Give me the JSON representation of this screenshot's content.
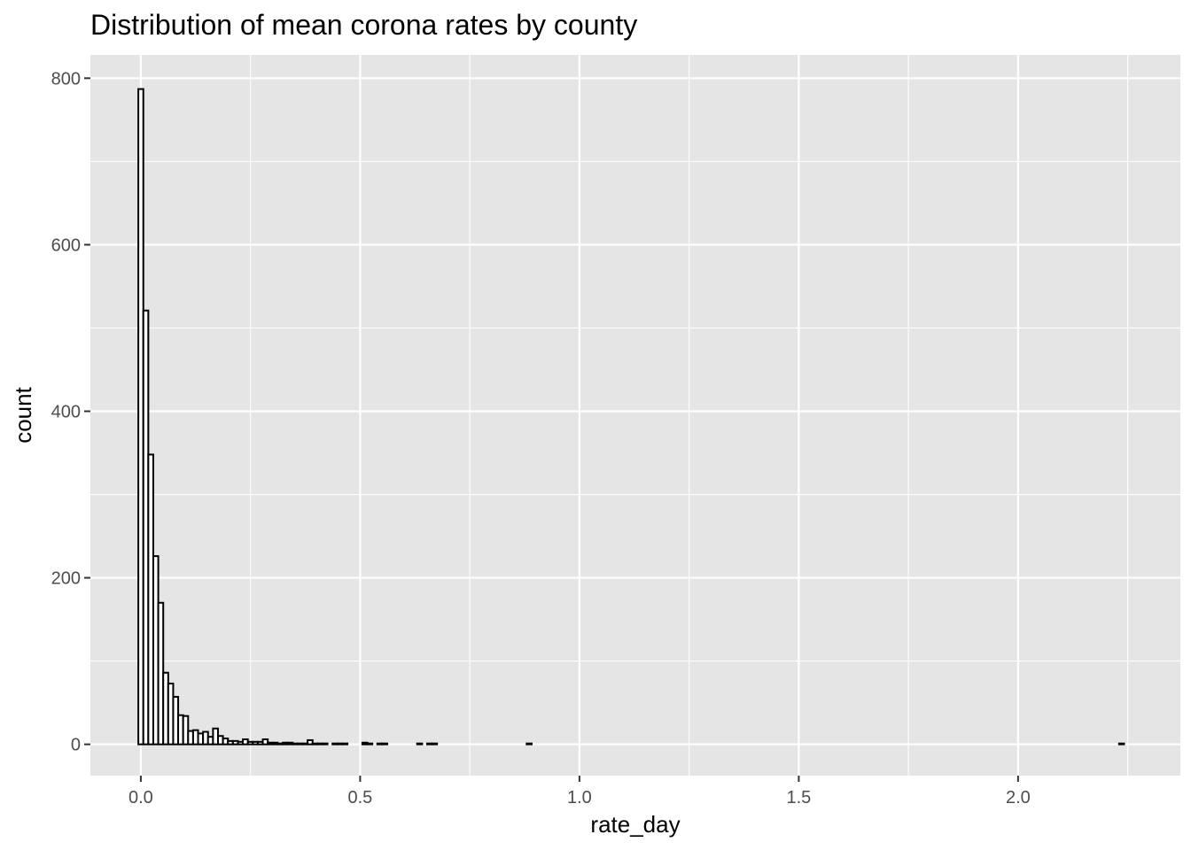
{
  "chart_data": {
    "type": "bar",
    "subtype": "histogram",
    "title": "Distribution of mean corona rates by county",
    "xlabel": "rate_day",
    "ylabel": "count",
    "xlim": [
      -0.115,
      2.37
    ],
    "ylim": [
      -37.6,
      828
    ],
    "x_ticks": [
      0.0,
      0.5,
      1.0,
      1.5,
      2.0
    ],
    "x_tick_labels": [
      "0.0",
      "0.5",
      "1.0",
      "1.5",
      "2.0"
    ],
    "y_ticks": [
      0,
      200,
      400,
      600,
      800
    ],
    "y_tick_labels": [
      "0",
      "200",
      "400",
      "600",
      "800"
    ],
    "grid": true,
    "legend": "none",
    "bin_start": -0.00567,
    "bin_width": 0.01135,
    "bins": 198,
    "counts": [
      787,
      521,
      348,
      226,
      170,
      86,
      73,
      57,
      35,
      34,
      16,
      17,
      13,
      15,
      9,
      19,
      10,
      7,
      4,
      4,
      3,
      6,
      3,
      3,
      3,
      6,
      2,
      2,
      1,
      2,
      2,
      1,
      1,
      1,
      5,
      1,
      1,
      1,
      0,
      1,
      1,
      1,
      0,
      0,
      0,
      2,
      1,
      0,
      1,
      1,
      0,
      0,
      0,
      0,
      0,
      0,
      1,
      0,
      1,
      1,
      0,
      0,
      0,
      0,
      0,
      0,
      0,
      0,
      0,
      0,
      0,
      0,
      0,
      0,
      0,
      0,
      0,
      0,
      1,
      0,
      0,
      0,
      0,
      0,
      0,
      0,
      0,
      0,
      0,
      0,
      0,
      0,
      0,
      0,
      0,
      0,
      0,
      0,
      0,
      0,
      0,
      0,
      0,
      0,
      0,
      0,
      0,
      0,
      0,
      0,
      0,
      0,
      0,
      0,
      0,
      0,
      0,
      0,
      0,
      0,
      0,
      0,
      0,
      0,
      0,
      0,
      0,
      0,
      0,
      0,
      0,
      0,
      0,
      0,
      0,
      0,
      0,
      0,
      0,
      0,
      0,
      0,
      0,
      0,
      0,
      0,
      0,
      0,
      0,
      0,
      0,
      0,
      0,
      0,
      0,
      0,
      0,
      0,
      0,
      0,
      0,
      0,
      0,
      0,
      0,
      0,
      0,
      0,
      0,
      0,
      0,
      0,
      0,
      0,
      0,
      0,
      0,
      0,
      0,
      0,
      0,
      0,
      0,
      0,
      0,
      0,
      0,
      0,
      0,
      0,
      0,
      0,
      0,
      0,
      0,
      0,
      0,
      1
    ],
    "bar_fill": "#ffffff",
    "bar_stroke": "#000000",
    "panel_background": "#e5e5e5",
    "grid_color": "#ffffff"
  }
}
